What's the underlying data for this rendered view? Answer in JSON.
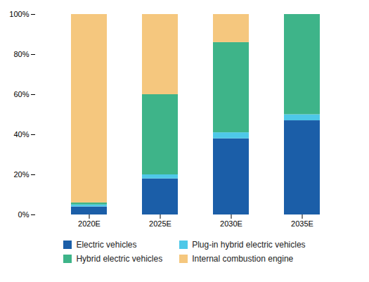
{
  "chart_data": {
    "type": "bar",
    "stacked": true,
    "categories": [
      "2020E",
      "2025E",
      "2030E",
      "2035E"
    ],
    "series": [
      {
        "name": "Electric vehicles",
        "color": "#1B5EA8",
        "values": [
          4,
          18,
          38,
          47
        ]
      },
      {
        "name": "Plug-in hybrid electric vehicles",
        "color": "#4EC8E8",
        "values": [
          1,
          2,
          3,
          3
        ]
      },
      {
        "name": "Hybrid electric vehicles",
        "color": "#3EB489",
        "values": [
          1,
          40,
          45,
          50
        ]
      },
      {
        "name": "Internal combustion engine",
        "color": "#F5C77E",
        "values": [
          94,
          40,
          14,
          0
        ]
      }
    ],
    "ylim": [
      0,
      100
    ],
    "yticks": [
      {
        "value": 0,
        "label": "0%"
      },
      {
        "value": 20,
        "label": "20%"
      },
      {
        "value": 40,
        "label": "40%"
      },
      {
        "value": 60,
        "label": "60%"
      },
      {
        "value": 80,
        "label": "80%"
      },
      {
        "value": 100,
        "label": "100%"
      }
    ],
    "grid": false,
    "legend": "bottom"
  }
}
